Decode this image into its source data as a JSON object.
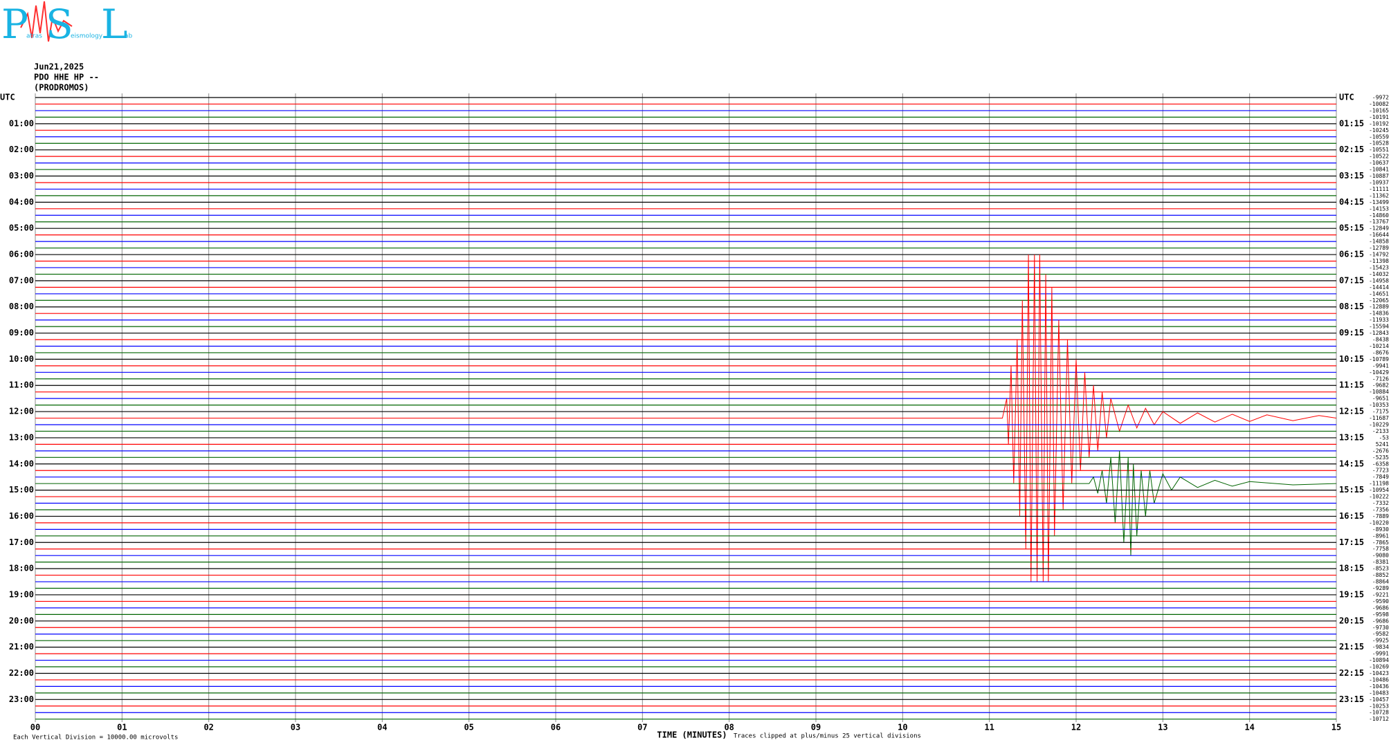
{
  "logo": [
    "P",
    "atras",
    "S",
    "eismology",
    "L",
    "ab"
  ],
  "header": {
    "date": "Jun21,2025",
    "station": "PDO HHE HP --",
    "site": "(PRODROMOS)"
  },
  "chart_data": {
    "type": "helicorder",
    "x_label": "TIME (MINUTES)",
    "clip_note": "Traces clipped at plus/minus 25 vertical divisions",
    "scale_note": "Each Vertical Division = 10000.00 microvolts",
    "xlim": [
      0,
      15
    ],
    "xticks": [
      {
        "value": 0,
        "label": "00"
      },
      {
        "value": 1,
        "label": "01"
      },
      {
        "value": 2,
        "label": "02"
      },
      {
        "value": 3,
        "label": "03"
      },
      {
        "value": 4,
        "label": "04"
      },
      {
        "value": 5,
        "label": "05"
      },
      {
        "value": 6,
        "label": "06"
      },
      {
        "value": 7,
        "label": "07"
      },
      {
        "value": 8,
        "label": "08"
      },
      {
        "value": 9,
        "label": "09"
      },
      10,
      11,
      12,
      13,
      14,
      15
    ],
    "grid": true,
    "trace_colors": [
      "#000000",
      "#ff0000",
      "#0000ff",
      "#006400"
    ],
    "left_labels": [
      "UTC",
      "01:00",
      "02:00",
      "03:00",
      "04:00",
      "05:00",
      "06:00",
      "07:00",
      "08:00",
      "09:00",
      "10:00",
      "11:00",
      "12:00",
      "13:00",
      "14:00",
      "15:00",
      "16:00",
      "17:00",
      "18:00",
      "19:00",
      "20:00",
      "21:00",
      "22:00",
      "23:00"
    ],
    "right_labels": [
      "UTC",
      "01:15",
      "02:15",
      "03:15",
      "04:15",
      "05:15",
      "06:15",
      "07:15",
      "08:15",
      "09:15",
      "10:15",
      "11:15",
      "12:15",
      "13:15",
      "14:15",
      "15:15",
      "16:15",
      "17:15",
      "18:15",
      "19:15",
      "20:15",
      "21:15",
      "22:15",
      "23:15"
    ],
    "offsets": [
      -9972,
      -10082,
      -10165,
      -10191,
      -10192,
      -10245,
      -10559,
      -10528,
      -10551,
      -10522,
      -10637,
      -10841,
      -10887,
      -10937,
      -11111,
      -11362,
      -13499,
      -14153,
      -14860,
      -13767,
      -12849,
      -16644,
      -14858,
      -12789,
      -14792,
      -11398,
      -15423,
      -14032,
      -14958,
      -14414,
      -14651,
      -12065,
      -12889,
      -14836,
      -11933,
      -15594,
      -12843,
      -8438,
      -10214,
      -8676,
      -10789,
      -9941,
      -10429,
      -7126,
      -9682,
      -10884,
      -9651,
      -10353,
      -7175,
      -11687,
      -10229,
      -2133,
      -53,
      5241,
      -2676,
      -5235,
      -6358,
      -7723,
      -7849,
      -11198,
      -10954,
      -10222,
      -7332,
      -7356,
      -7889,
      -10220,
      -8930,
      -8961,
      -7865,
      -7758,
      -9080,
      -8381,
      -8523,
      -8852,
      -8864,
      -9289,
      -9221,
      -9590,
      -9686,
      -9598,
      -9686,
      -9730,
      -9582,
      -9925,
      -9834,
      -9991,
      -10894,
      -10269,
      -10423,
      -10486,
      -10436,
      -10483,
      -10457,
      -10253,
      -10728,
      -10712
    ],
    "waveforms": [
      null,
      null,
      null,
      null,
      null,
      null,
      null,
      null,
      null,
      null,
      null,
      null,
      null,
      null,
      null,
      null,
      null,
      null,
      null,
      null,
      null,
      null,
      null,
      null,
      null,
      null,
      null,
      null,
      null,
      null,
      null,
      null,
      null,
      null,
      null,
      null,
      null,
      null,
      null,
      null,
      null,
      null,
      null,
      null,
      null,
      null,
      null,
      null,
      null,
      {
        "x": [
          0,
          11.15,
          11.2,
          11.22,
          11.25,
          11.28,
          11.32,
          11.35,
          11.38,
          11.42,
          11.45,
          11.48,
          11.52,
          11.55,
          11.58,
          11.62,
          11.65,
          11.68,
          11.72,
          11.75,
          11.8,
          11.85,
          11.9,
          11.95,
          12.0,
          12.05,
          12.1,
          12.15,
          12.2,
          12.25,
          12.3,
          12.35,
          12.4,
          12.5,
          12.6,
          12.7,
          12.8,
          12.9,
          13.0,
          13.2,
          13.4,
          13.6,
          13.8,
          14.0,
          14.2,
          14.5,
          14.8,
          15
        ],
        "values": [
          0,
          0,
          3,
          -4,
          8,
          -10,
          12,
          -15,
          18,
          -20,
          25,
          -25,
          25,
          -25,
          25,
          -25,
          22,
          -25,
          20,
          -18,
          15,
          -14,
          12,
          -10,
          9,
          -8,
          7,
          -6,
          5,
          -5,
          4,
          -3,
          3,
          -2,
          2,
          -1.5,
          1.5,
          -1,
          1,
          -0.8,
          0.8,
          -0.6,
          0.6,
          -0.5,
          0.5,
          -0.4,
          0.4,
          0
        ]
      },
      null,
      null,
      null,
      null,
      null,
      null,
      null,
      null,
      null,
      {
        "x": [
          0,
          12.15,
          12.2,
          12.25,
          12.3,
          12.35,
          12.4,
          12.45,
          12.5,
          12.55,
          12.6,
          12.63,
          12.66,
          12.7,
          12.75,
          12.8,
          12.85,
          12.9,
          13.0,
          13.1,
          13.2,
          13.4,
          13.6,
          13.8,
          14.0,
          14.5,
          15
        ],
        "values": [
          0,
          0,
          1,
          -1.5,
          2,
          -3,
          4,
          -6,
          5,
          -9,
          4,
          -11,
          3,
          -8,
          2,
          -5,
          2,
          -3,
          1.5,
          -1,
          1,
          -0.6,
          0.5,
          -0.4,
          0.3,
          -0.2,
          0
        ]
      },
      null,
      null,
      null,
      null,
      null,
      null,
      null,
      null,
      null,
      null,
      null,
      null,
      null,
      null,
      null,
      null,
      null,
      null,
      null,
      null,
      null,
      null,
      null,
      null,
      null,
      null,
      null,
      null,
      null,
      null,
      null,
      null,
      null,
      null,
      null,
      null
    ]
  }
}
